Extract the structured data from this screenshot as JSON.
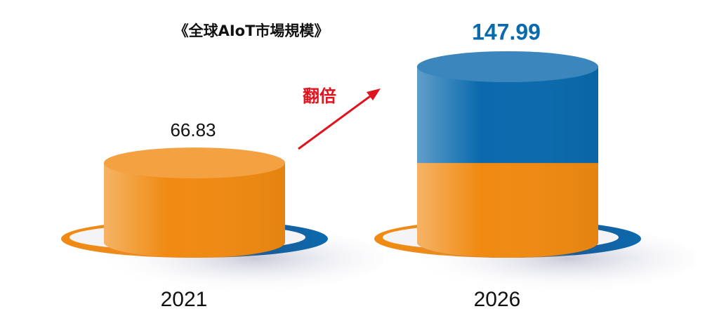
{
  "chart_data": {
    "type": "cylinder",
    "title": "《全球AIoT市場規模》",
    "categories": [
      "2021",
      "2026"
    ],
    "values": [
      66.83,
      147.99
    ],
    "colors": [
      "#f08a12",
      "#0a6aad"
    ],
    "annotation": "翻倍"
  }
}
